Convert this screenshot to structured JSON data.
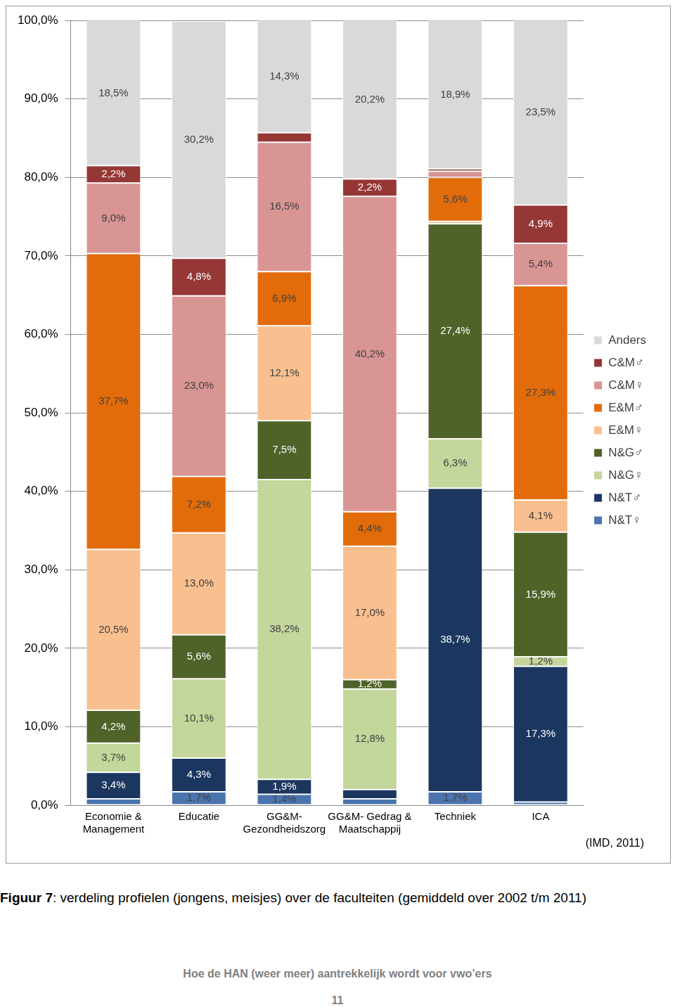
{
  "chart_data": {
    "type": "bar",
    "stacked": true,
    "data_labels": true,
    "grid": true,
    "legend": "right",
    "caption": "Figuur 7: verdeling profielen (jongens, meisjes) over de faculteiten (gemiddeld over 2002 t/m 2011)",
    "caption_bold": "Figuur 7",
    "source": "(IMD, 2011)",
    "footer": "Hoe de HAN (weer meer) aantrekkelijk wordt voor vwo’ers",
    "page_number": "11",
    "categories": [
      "Economie & Management",
      "Educatie",
      "GG&M-Gezondheidszorg",
      "GG&M- Gedrag & Maatschappij",
      "Techniek",
      "ICA"
    ],
    "ylim": [
      0,
      100
    ],
    "yticks": [
      {
        "value": 0,
        "label": "0,0%"
      },
      {
        "value": 10,
        "label": "10,0%"
      },
      {
        "value": 20,
        "label": "20,0%"
      },
      {
        "value": 30,
        "label": "30,0%"
      },
      {
        "value": 40,
        "label": "40,0%"
      },
      {
        "value": 50,
        "label": "50,0%"
      },
      {
        "value": 60,
        "label": "60,0%"
      },
      {
        "value": 70,
        "label": "70,0%"
      },
      {
        "value": 80,
        "label": "80,0%"
      },
      {
        "value": 90,
        "label": "90,0%"
      },
      {
        "value": 100,
        "label": "100,0%"
      }
    ],
    "series": [
      {
        "name": "N&T♀",
        "color": "#4a74ae",
        "values": [
          0.8,
          1.7,
          1.4,
          0.8,
          1.7,
          0.4
        ],
        "value_labels": [
          null,
          "1,7%",
          "1,4%",
          null,
          "1,7%",
          null
        ]
      },
      {
        "name": "N&T♂",
        "color": "#1b365f",
        "values": [
          3.4,
          4.3,
          1.9,
          1.2,
          38.7,
          17.3
        ],
        "value_labels": [
          "3,4%",
          "4,3%",
          "1,9%",
          null,
          "38,7%",
          "17,3%"
        ]
      },
      {
        "name": "N&G♀",
        "color": "#c3d69b",
        "values": [
          3.7,
          10.1,
          38.2,
          12.8,
          6.3,
          1.2
        ],
        "value_labels": [
          "3,7%",
          "10,1%",
          "38,2%",
          "12,8%",
          "6,3%",
          "1,2%"
        ]
      },
      {
        "name": "N&G♂",
        "color": "#4f6228",
        "values": [
          4.2,
          5.6,
          7.5,
          1.2,
          27.4,
          15.9
        ],
        "value_labels": [
          "4,2%",
          "5,6%",
          "7,5%",
          "1,2%",
          "27,4%",
          "15,9%"
        ]
      },
      {
        "name": "E&M♀",
        "color": "#f9bf8f",
        "values": [
          20.5,
          13.0,
          12.1,
          17.0,
          0.3,
          4.1
        ],
        "value_labels": [
          "20,5%",
          "13,0%",
          "12,1%",
          "17,0%",
          null,
          "4,1%"
        ]
      },
      {
        "name": "E&M♂",
        "color": "#e26b0a",
        "values": [
          37.7,
          7.2,
          6.9,
          4.4,
          5.6,
          27.3
        ],
        "value_labels": [
          "37,7%",
          "7,2%",
          "6,9%",
          "4,4%",
          "5,6%",
          "27,3%"
        ]
      },
      {
        "name": "C&M♀",
        "color": "#d99594",
        "values": [
          9.0,
          23.0,
          16.5,
          40.2,
          0.8,
          5.4
        ],
        "value_labels": [
          "9,0%",
          "23,0%",
          "16,5%",
          "40,2%",
          null,
          "5,4%"
        ]
      },
      {
        "name": "C&M♂",
        "color": "#953735",
        "values": [
          2.2,
          4.8,
          1.2,
          2.2,
          0.3,
          4.9
        ],
        "value_labels": [
          "2,2%",
          "4,8%",
          null,
          "2,2%",
          null,
          "4,9%"
        ]
      },
      {
        "name": "Anders",
        "color": "#d9d9d9",
        "values": [
          18.5,
          30.2,
          14.3,
          20.2,
          18.9,
          23.5
        ],
        "value_labels": [
          "18,5%",
          "30,2%",
          "14,3%",
          "20,2%",
          "18,9%",
          "23,5%"
        ]
      }
    ]
  }
}
